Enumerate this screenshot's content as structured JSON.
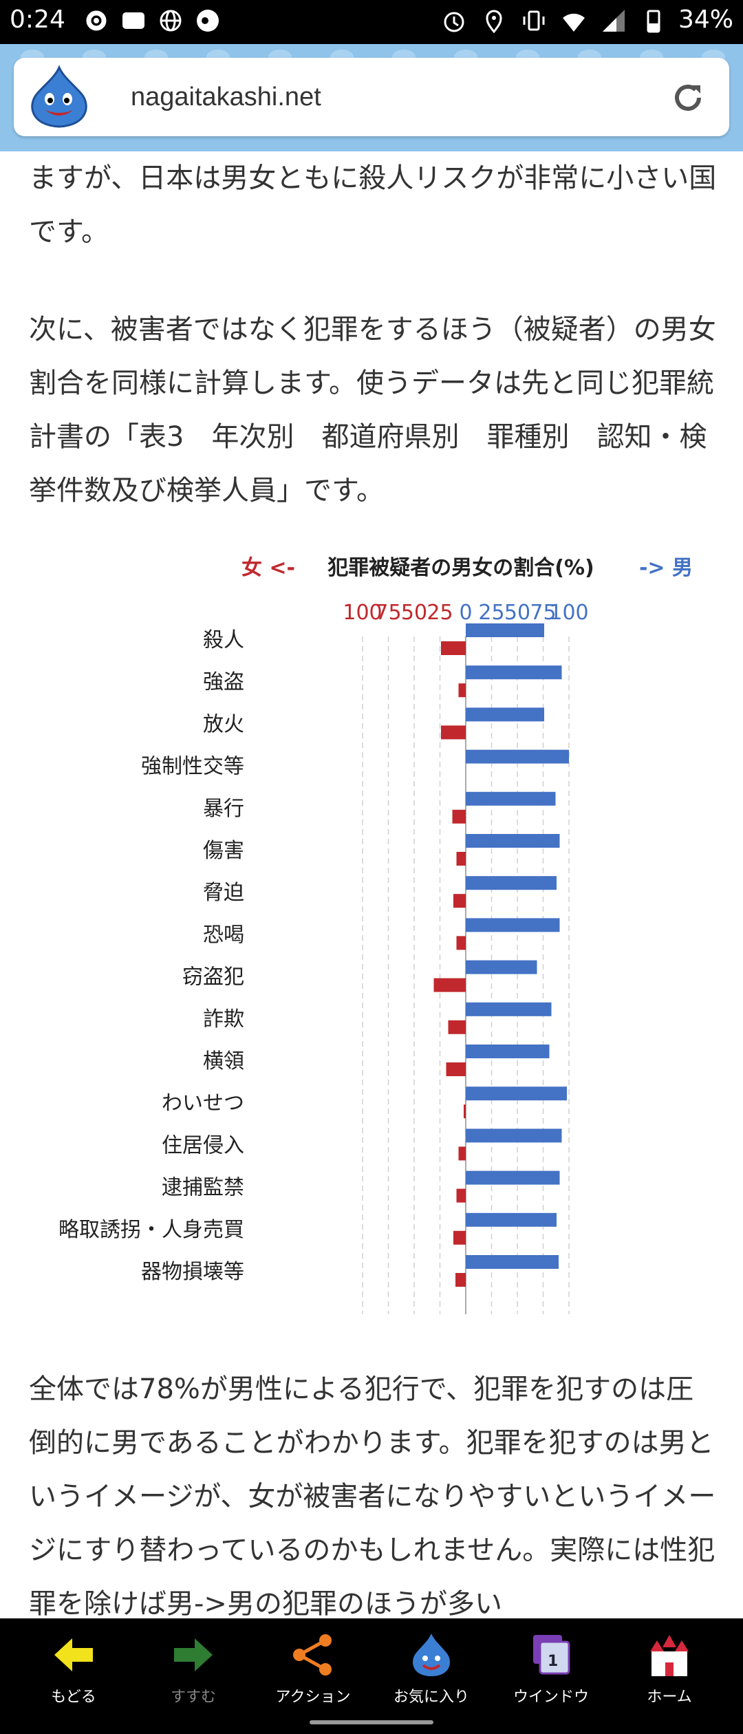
{
  "status": {
    "time": "0:24",
    "battery": "34%"
  },
  "browser": {
    "url": "nagaitakashi.net"
  },
  "article": {
    "p1": "ますが、日本は男女ともに殺人リスクが非常に小さい国です。",
    "p2": "次に、被害者ではなく犯罪をするほう（被疑者）の男女割合を同様に計算します。使うデータは先と同じ犯罪統計書の「表3　年次別　都道府県別　罪種別　認知・検挙件数及び検挙人員」です。",
    "p3": "全体では78%が男性による犯行で、犯罪を犯すのは圧倒的に男であることがわかります。犯罪を犯すのは男というイメージが、女が被害者になりやすいというイメージにすり替わっているのかもしれません。実際には性犯罪を除けば男->男の犯罪のほうが多い"
  },
  "chart_data": {
    "type": "bar",
    "title": "犯罪被疑者の男女の割合(%)",
    "left_label": "女 <-",
    "right_label": "-> 男",
    "tick_labels": [
      "100",
      "75",
      "50",
      "25",
      "0",
      "25",
      "50",
      "75",
      "100"
    ],
    "categories": [
      "殺人",
      "強盗",
      "放火",
      "強制性交等",
      "暴行",
      "傷害",
      "脅迫",
      "恐喝",
      "窃盗犯",
      "詐欺",
      "横領",
      "わいせつ",
      "住居侵入",
      "逮捕監禁",
      "略取誘拐・人身売買",
      "器物損壊等"
    ],
    "series": [
      {
        "name": "女",
        "color": "#c0282d",
        "values": [
          24,
          7,
          24,
          0,
          13,
          9,
          12,
          9,
          31,
          17,
          19,
          2,
          7,
          9,
          12,
          10
        ]
      },
      {
        "name": "男",
        "color": "#4472c4",
        "values": [
          76,
          93,
          76,
          100,
          87,
          91,
          88,
          91,
          69,
          83,
          81,
          98,
          93,
          91,
          88,
          90
        ]
      }
    ],
    "xlim": [
      -100,
      100
    ],
    "colors": {
      "female": "#c0282d",
      "male": "#4472c4"
    }
  },
  "nav": {
    "items": [
      {
        "label": "もどる"
      },
      {
        "label": "すすむ"
      },
      {
        "label": "アクション"
      },
      {
        "label": "お気に入り"
      },
      {
        "label": "ウインドウ"
      },
      {
        "label": "ホーム"
      }
    ],
    "window_count": "1"
  }
}
